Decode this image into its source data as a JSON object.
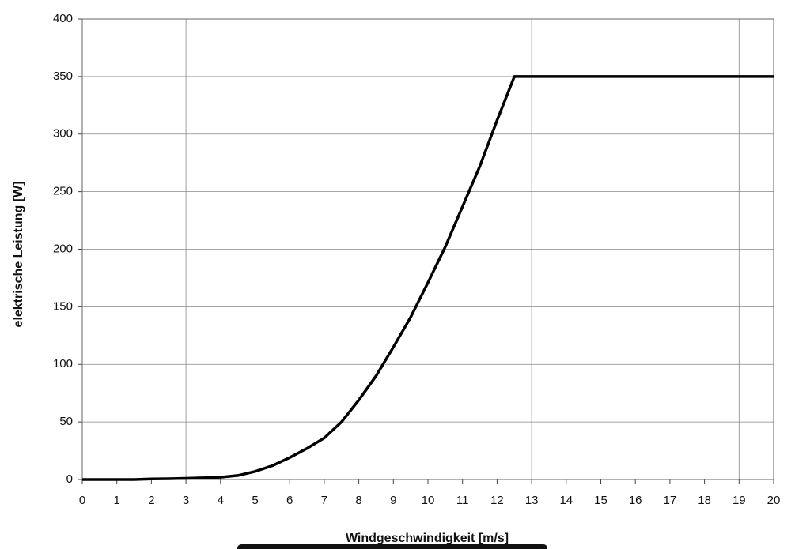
{
  "chart_data": {
    "type": "line",
    "x_label": "Windgeschwindigkeit   [m/s]",
    "y_label": "elektrische Leistung   [W]",
    "x": [
      0,
      1,
      1.5,
      2,
      2.5,
      3,
      3.5,
      4,
      4.5,
      5,
      5.5,
      6,
      6.5,
      7,
      7.5,
      8,
      8.5,
      9,
      9.5,
      10,
      10.5,
      11,
      11.5,
      12,
      12.5,
      20
    ],
    "series": [
      {
        "color": "#000000",
        "values": [
          0,
          0,
          0,
          0.5,
          0.7,
          1,
          1.5,
          2,
          3.5,
          7,
          12,
          19,
          27,
          36,
          50,
          69,
          90,
          115,
          141,
          171,
          202,
          237,
          272,
          312,
          350,
          350
        ]
      }
    ],
    "xlim": [
      0,
      20
    ],
    "xticks": [
      0,
      1,
      2,
      3,
      4,
      5,
      6,
      7,
      8,
      9,
      10,
      11,
      12,
      13,
      14,
      15,
      16,
      17,
      18,
      19,
      20
    ],
    "ylim": [
      0,
      400
    ],
    "yticks": [
      0,
      50,
      100,
      150,
      200,
      250,
      300,
      350,
      400
    ],
    "x_grid_at": [
      3,
      5,
      13,
      19
    ],
    "grid": true
  }
}
